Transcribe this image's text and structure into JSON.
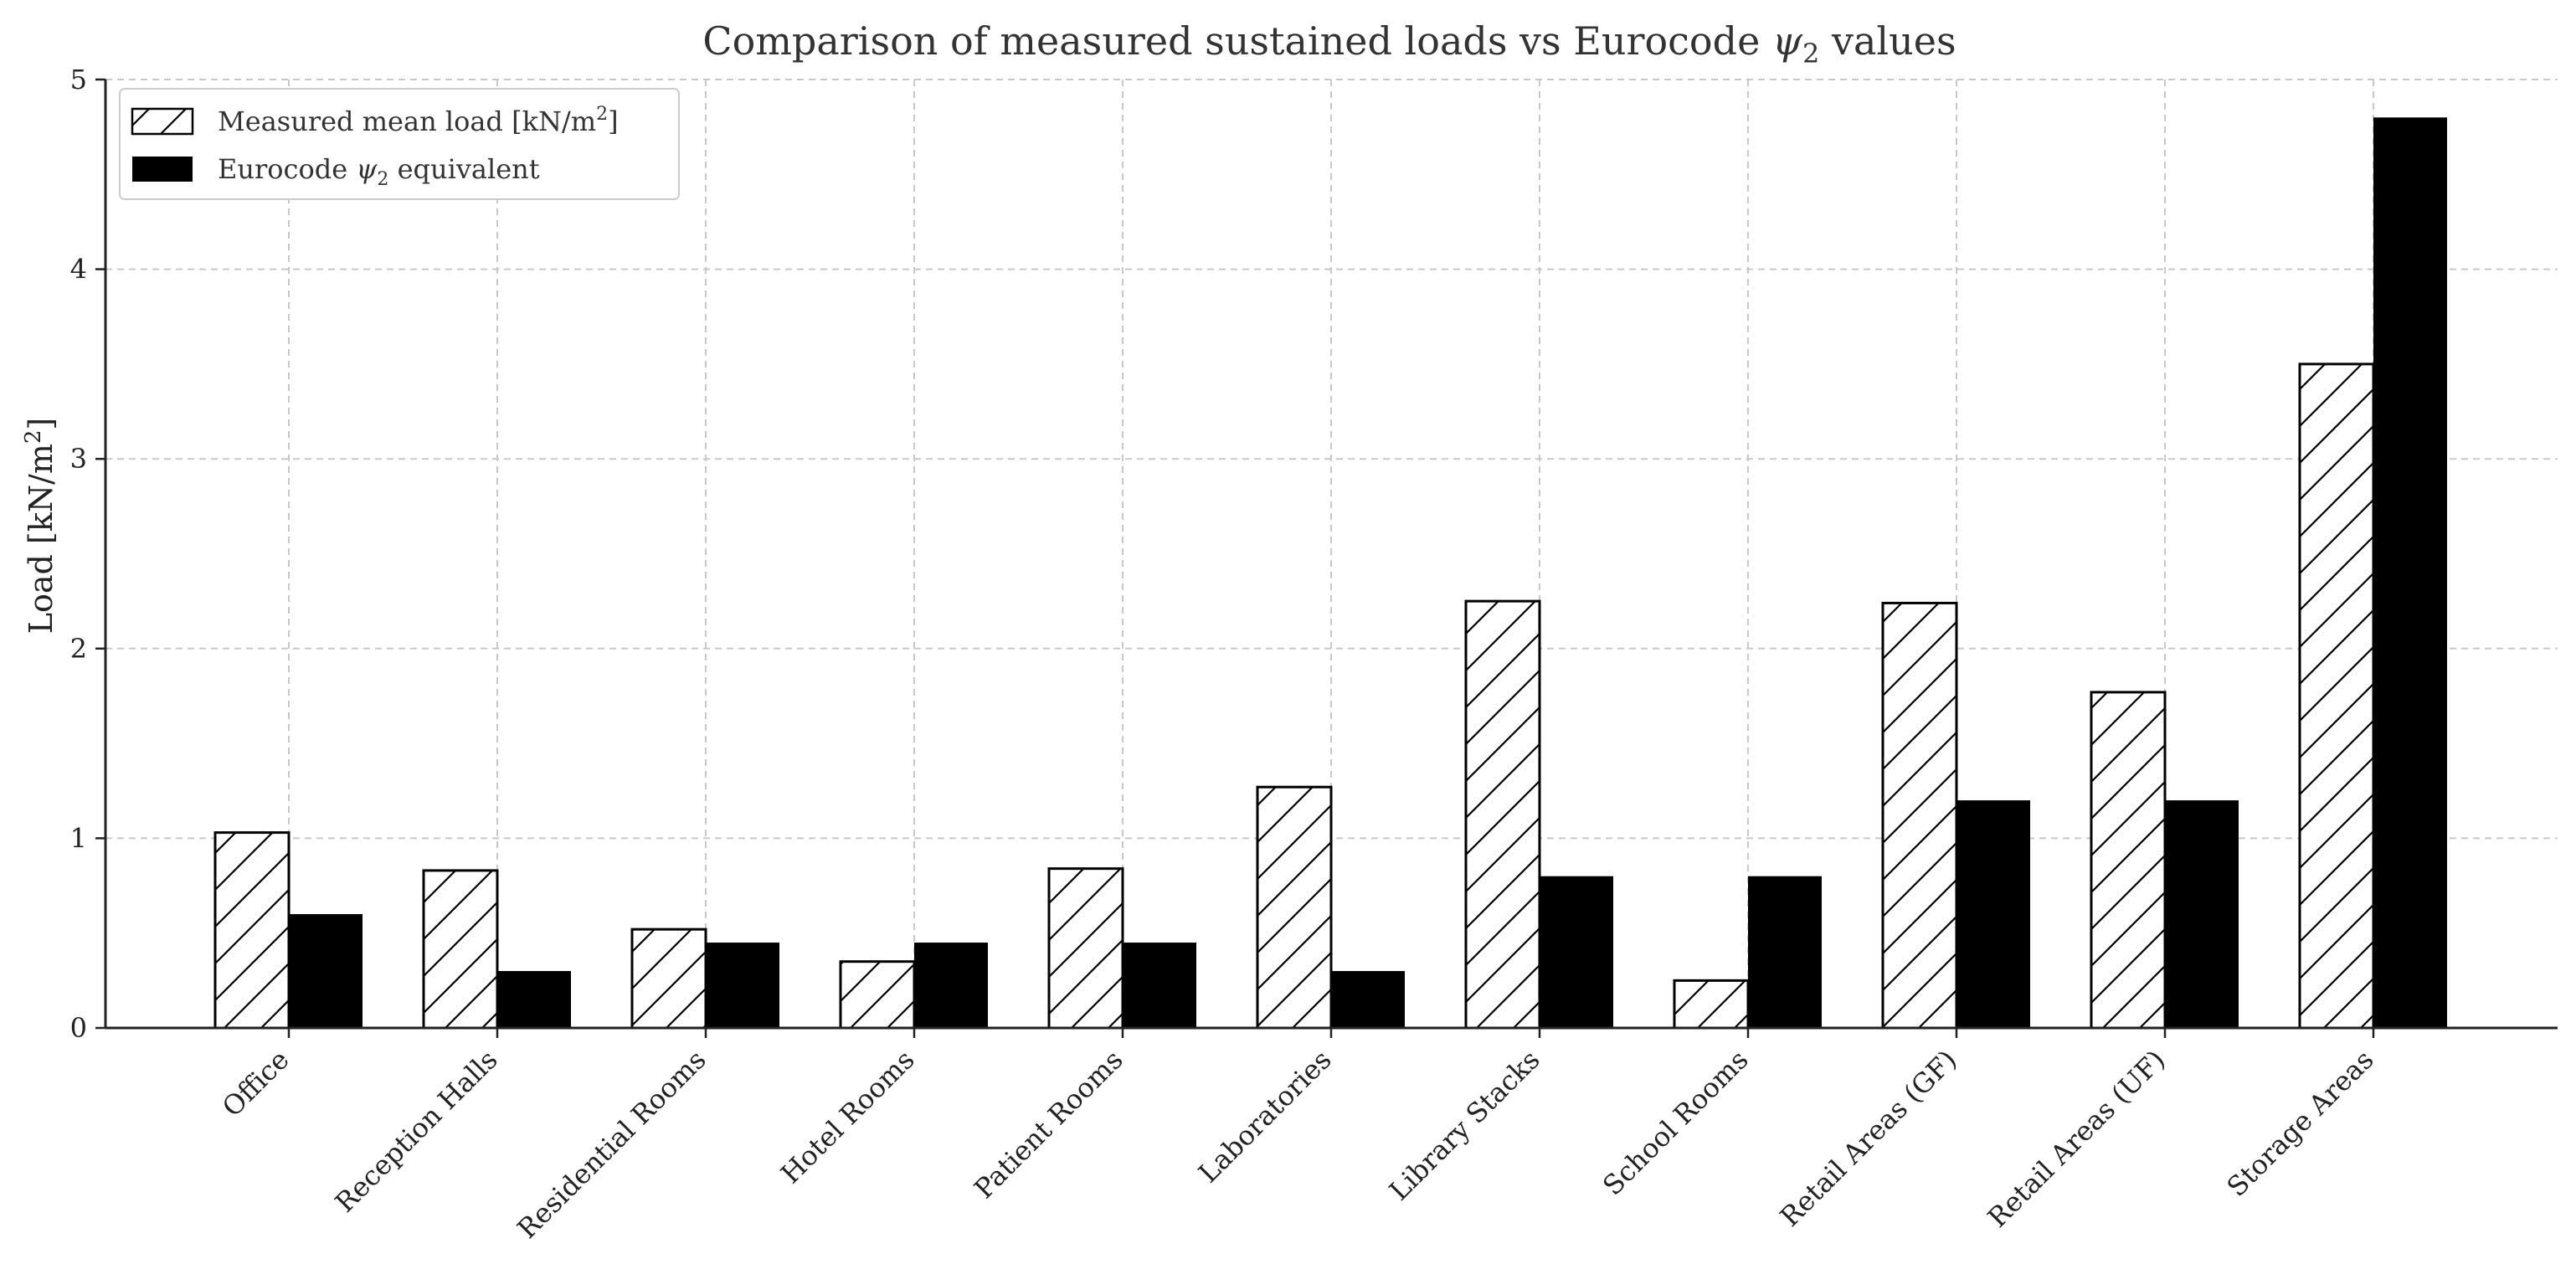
{
  "chart_data": {
    "type": "bar",
    "title_main": "Comparison of measured sustained loads vs Eurocode ",
    "title_sym": "ψ",
    "title_sub": "2",
    "title_tail": " values",
    "ylabel_main": "Load [kN/m",
    "ylabel_sup": "2",
    "ylabel_tail": "]",
    "xlabel": "",
    "ylim": [
      0,
      5
    ],
    "yticks": [
      "0",
      "1",
      "2",
      "3",
      "4",
      "5"
    ],
    "grid": true,
    "legend_position": "top-left",
    "categories": [
      "Office",
      "Reception Halls",
      "Residential Rooms",
      "Hotel Rooms",
      "Patient Rooms",
      "Laboratories",
      "Library Stacks",
      "School Rooms",
      "Retail Areas (GF)",
      "Retail Areas (UF)",
      "Storage Areas"
    ],
    "series": [
      {
        "name": "Measured mean load [kN/m2]",
        "legend_main": "Measured mean load [kN/m",
        "legend_sup": "2",
        "legend_tail": "]",
        "style": "hatched",
        "values": [
          1.03,
          0.83,
          0.52,
          0.35,
          0.84,
          1.27,
          2.25,
          0.25,
          2.24,
          1.77,
          3.5
        ]
      },
      {
        "name": "Eurocode ψ2 equivalent",
        "legend_main": "Eurocode ",
        "legend_sym": "ψ",
        "legend_sub": "2",
        "legend_tail": " equivalent",
        "style": "solid",
        "values": [
          0.6,
          0.3,
          0.45,
          0.45,
          0.45,
          0.3,
          0.8,
          0.8,
          1.2,
          1.2,
          4.8
        ]
      }
    ],
    "colors": {
      "solid": "#000000",
      "hatched_fill": "#ffffff",
      "edge": "#000000"
    }
  }
}
